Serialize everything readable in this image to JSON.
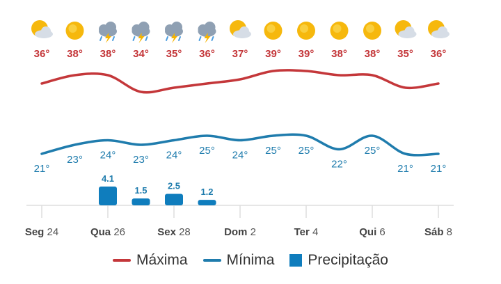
{
  "colors": {
    "max": "#c4373a",
    "min": "#1f7cad",
    "precip": "#0f7dbd",
    "axis": "#dddddd",
    "tick_text": "#555555"
  },
  "chart_data": {
    "type": "line",
    "days": 13,
    "icons": [
      "sun-cloud-icon",
      "sun-icon",
      "storm-icon",
      "storm-icon",
      "storm-icon",
      "storm-icon",
      "sun-cloud-icon",
      "sun-icon",
      "sun-icon",
      "sun-icon",
      "sun-icon",
      "sun-cloud-icon",
      "sun-cloud-icon"
    ],
    "max_labels": [
      "36°",
      "38°",
      "38°",
      "34°",
      "35°",
      "36°",
      "37°",
      "39°",
      "39°",
      "38°",
      "38°",
      "35°",
      "36°"
    ],
    "max_values": [
      36,
      38,
      38,
      34,
      35,
      36,
      37,
      39,
      39,
      38,
      38,
      35,
      36
    ],
    "min_labels": [
      "21°",
      "23°",
      "24°",
      "23°",
      "24°",
      "25°",
      "24°",
      "25°",
      "25°",
      "22°",
      "25°",
      "21°",
      "21°"
    ],
    "min_values": [
      21,
      23,
      24,
      23,
      24,
      25,
      24,
      25,
      25,
      22,
      25,
      21,
      21
    ],
    "precip": [
      {
        "day": 2,
        "value": 4.1,
        "label": "4.1"
      },
      {
        "day": 3,
        "value": 1.5,
        "label": "1.5"
      },
      {
        "day": 4,
        "value": 2.5,
        "label": "2.5"
      },
      {
        "day": 5,
        "value": 1.2,
        "label": "1.2"
      }
    ],
    "x_ticks": [
      {
        "day": 0,
        "bold": "Seg",
        "rest": " 24"
      },
      {
        "day": 2,
        "bold": "Qua",
        "rest": " 26"
      },
      {
        "day": 4,
        "bold": "Sex",
        "rest": " 28"
      },
      {
        "day": 6,
        "bold": "Dom",
        "rest": " 2"
      },
      {
        "day": 8,
        "bold": "Ter",
        "rest": " 4"
      },
      {
        "day": 10,
        "bold": "Qui",
        "rest": " 6"
      },
      {
        "day": 12,
        "bold": "Sáb",
        "rest": " 8"
      }
    ]
  },
  "legend": {
    "max": "Máxima",
    "min": "Mínima",
    "precip": "Precipitação"
  }
}
